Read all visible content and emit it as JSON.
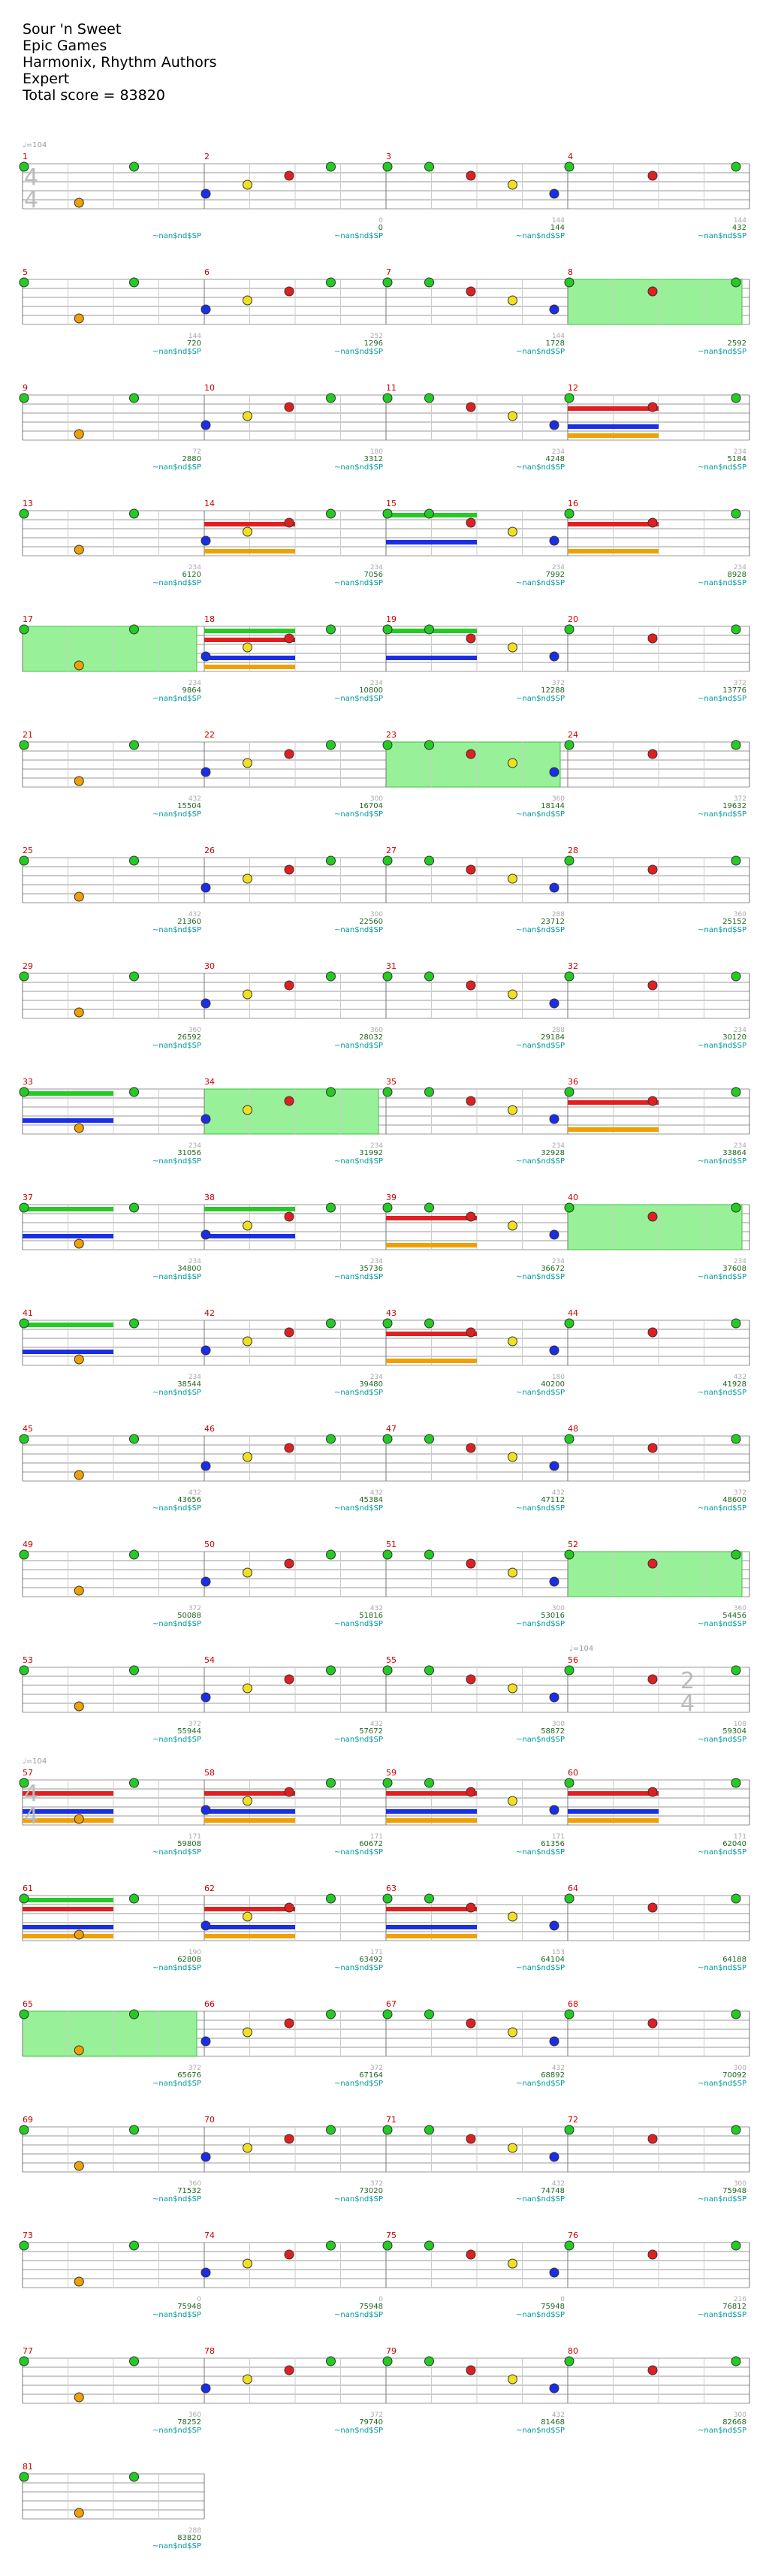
{
  "header": {
    "title": "Sour 'n Sweet",
    "artist": "Epic Games",
    "author": "Harmonix, Rhythm Authors",
    "difficulty": "Expert",
    "total_score": "Total score = 83820"
  },
  "tempo_marks": [
    {
      "measure": 1,
      "label": "♩=104"
    },
    {
      "measure": 56,
      "label": "♩=104"
    },
    {
      "measure": 57,
      "label": "♩=104"
    }
  ],
  "time_signatures": [
    {
      "measure": 1,
      "top": "4",
      "bottom": "4"
    },
    {
      "measure": 56,
      "top": "2",
      "bottom": "4"
    },
    {
      "measure": 57,
      "top": "4",
      "bottom": "4"
    }
  ],
  "marker_text": "~nan$nd$SP",
  "colors": {
    "green": "#22cc22",
    "red": "#e02020",
    "yellow": "#f0e020",
    "blue": "#1a2ee6",
    "orange": "#f0a000",
    "sp": "#98f098",
    "measure_no": "#cc0000",
    "score": "#226622",
    "marker": "#009999"
  },
  "rows": [
    {
      "measures": [
        1,
        2,
        3,
        4
      ],
      "scores": [
        "",
        "0",
        "144",
        "432"
      ],
      "subs": [
        "",
        "0",
        "144",
        "144"
      ]
    },
    {
      "measures": [
        5,
        6,
        7,
        8
      ],
      "scores": [
        "720",
        "1296",
        "1728",
        "2592"
      ],
      "subs": [
        "144",
        "252",
        "144",
        ""
      ]
    },
    {
      "measures": [
        9,
        10,
        11,
        12
      ],
      "scores": [
        "2880",
        "3312",
        "4248",
        "5184"
      ],
      "subs": [
        "72",
        "180",
        "234",
        "234"
      ]
    },
    {
      "measures": [
        13,
        14,
        15,
        16
      ],
      "scores": [
        "6120",
        "7056",
        "7992",
        "8928"
      ],
      "subs": [
        "234",
        "234",
        "234",
        "234"
      ]
    },
    {
      "measures": [
        17,
        18,
        19,
        20
      ],
      "scores": [
        "9864",
        "10800",
        "12288",
        "13776"
      ],
      "subs": [
        "234",
        "234",
        "372",
        "372"
      ]
    },
    {
      "measures": [
        21,
        22,
        23,
        24
      ],
      "scores": [
        "15504",
        "16704",
        "18144",
        "19632"
      ],
      "subs": [
        "432",
        "300",
        "360",
        "372"
      ]
    },
    {
      "measures": [
        25,
        26,
        27,
        28
      ],
      "scores": [
        "21360",
        "22560",
        "23712",
        "25152"
      ],
      "subs": [
        "432",
        "300",
        "288",
        "360"
      ]
    },
    {
      "measures": [
        29,
        30,
        31,
        32
      ],
      "scores": [
        "26592",
        "28032",
        "29184",
        "30120"
      ],
      "subs": [
        "360",
        "360",
        "288",
        "234"
      ]
    },
    {
      "measures": [
        33,
        34,
        35,
        36
      ],
      "scores": [
        "31056",
        "31992",
        "32928",
        "33864"
      ],
      "subs": [
        "234",
        "234",
        "234",
        "234"
      ]
    },
    {
      "measures": [
        37,
        38,
        39,
        40
      ],
      "scores": [
        "34800",
        "35736",
        "36672",
        "37608"
      ],
      "subs": [
        "234",
        "234",
        "234",
        "234"
      ]
    },
    {
      "measures": [
        41,
        42,
        43,
        44
      ],
      "scores": [
        "38544",
        "39480",
        "40200",
        "41928"
      ],
      "subs": [
        "234",
        "234",
        "180",
        "432"
      ]
    },
    {
      "measures": [
        45,
        46,
        47,
        48
      ],
      "scores": [
        "43656",
        "45384",
        "47112",
        "48600"
      ],
      "subs": [
        "432",
        "432",
        "432",
        "372"
      ]
    },
    {
      "measures": [
        49,
        50,
        51,
        52
      ],
      "scores": [
        "50088",
        "51816",
        "53016",
        "54456"
      ],
      "subs": [
        "372",
        "432",
        "300",
        "360"
      ]
    },
    {
      "measures": [
        53,
        54,
        55,
        56
      ],
      "scores": [
        "55944",
        "57672",
        "58872",
        "59304"
      ],
      "subs": [
        "372",
        "432",
        "300",
        "108"
      ]
    },
    {
      "measures": [
        57,
        58,
        59,
        60
      ],
      "scores": [
        "59808",
        "60672",
        "61356",
        "62040"
      ],
      "subs": [
        "171",
        "171",
        "171",
        "171"
      ]
    },
    {
      "measures": [
        61,
        62,
        63,
        64
      ],
      "scores": [
        "62808",
        "63492",
        "64104",
        "64188"
      ],
      "subs": [
        "190",
        "171",
        "153",
        ""
      ]
    },
    {
      "measures": [
        65,
        66,
        67,
        68
      ],
      "scores": [
        "65676",
        "67164",
        "68892",
        "70092"
      ],
      "subs": [
        "372",
        "372",
        "432",
        "300"
      ]
    },
    {
      "measures": [
        69,
        70,
        71,
        72
      ],
      "scores": [
        "71532",
        "73020",
        "74748",
        "75948"
      ],
      "subs": [
        "360",
        "372",
        "432",
        "300"
      ]
    },
    {
      "measures": [
        73,
        74,
        75,
        76
      ],
      "scores": [
        "75948",
        "75948",
        "75948",
        "76812"
      ],
      "subs": [
        "0",
        "0",
        "0",
        "216"
      ]
    },
    {
      "measures": [
        77,
        78,
        79,
        80
      ],
      "scores": [
        "78252",
        "79740",
        "81468",
        "82668"
      ],
      "subs": [
        "360",
        "372",
        "432",
        "300"
      ]
    },
    {
      "measures": [
        81
      ],
      "scores": [
        "83820"
      ],
      "subs": [
        "288"
      ]
    }
  ]
}
